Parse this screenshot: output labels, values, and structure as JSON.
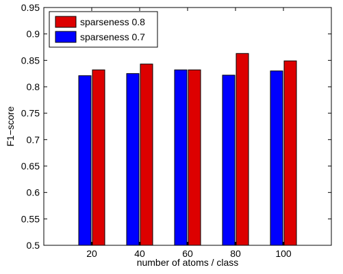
{
  "chart_data": {
    "type": "bar",
    "categories": [
      "20",
      "40",
      "60",
      "80",
      "100"
    ],
    "series": [
      {
        "name": "sparseness 0.7",
        "color": "#0000ff",
        "values": [
          0.821,
          0.825,
          0.832,
          0.822,
          0.83
        ]
      },
      {
        "name": "sparseness 0.8",
        "color": "#dd0000",
        "values": [
          0.832,
          0.843,
          0.832,
          0.863,
          0.849
        ]
      }
    ],
    "xlabel": "number of atoms / class",
    "ylabel": "F1−score",
    "ylim": [
      0.5,
      0.95
    ],
    "yticks": [
      0.5,
      0.55,
      0.6,
      0.65,
      0.7,
      0.75,
      0.8,
      0.85,
      0.9,
      0.95
    ],
    "ytick_labels": [
      "0.5",
      "0.55",
      "0.6",
      "0.65",
      "0.7",
      "0.75",
      "0.8",
      "0.85",
      "0.9",
      "0.95"
    ],
    "grid": false,
    "legend_position": "top-left",
    "legend_order": [
      "sparseness 0.8",
      "sparseness 0.7"
    ]
  }
}
